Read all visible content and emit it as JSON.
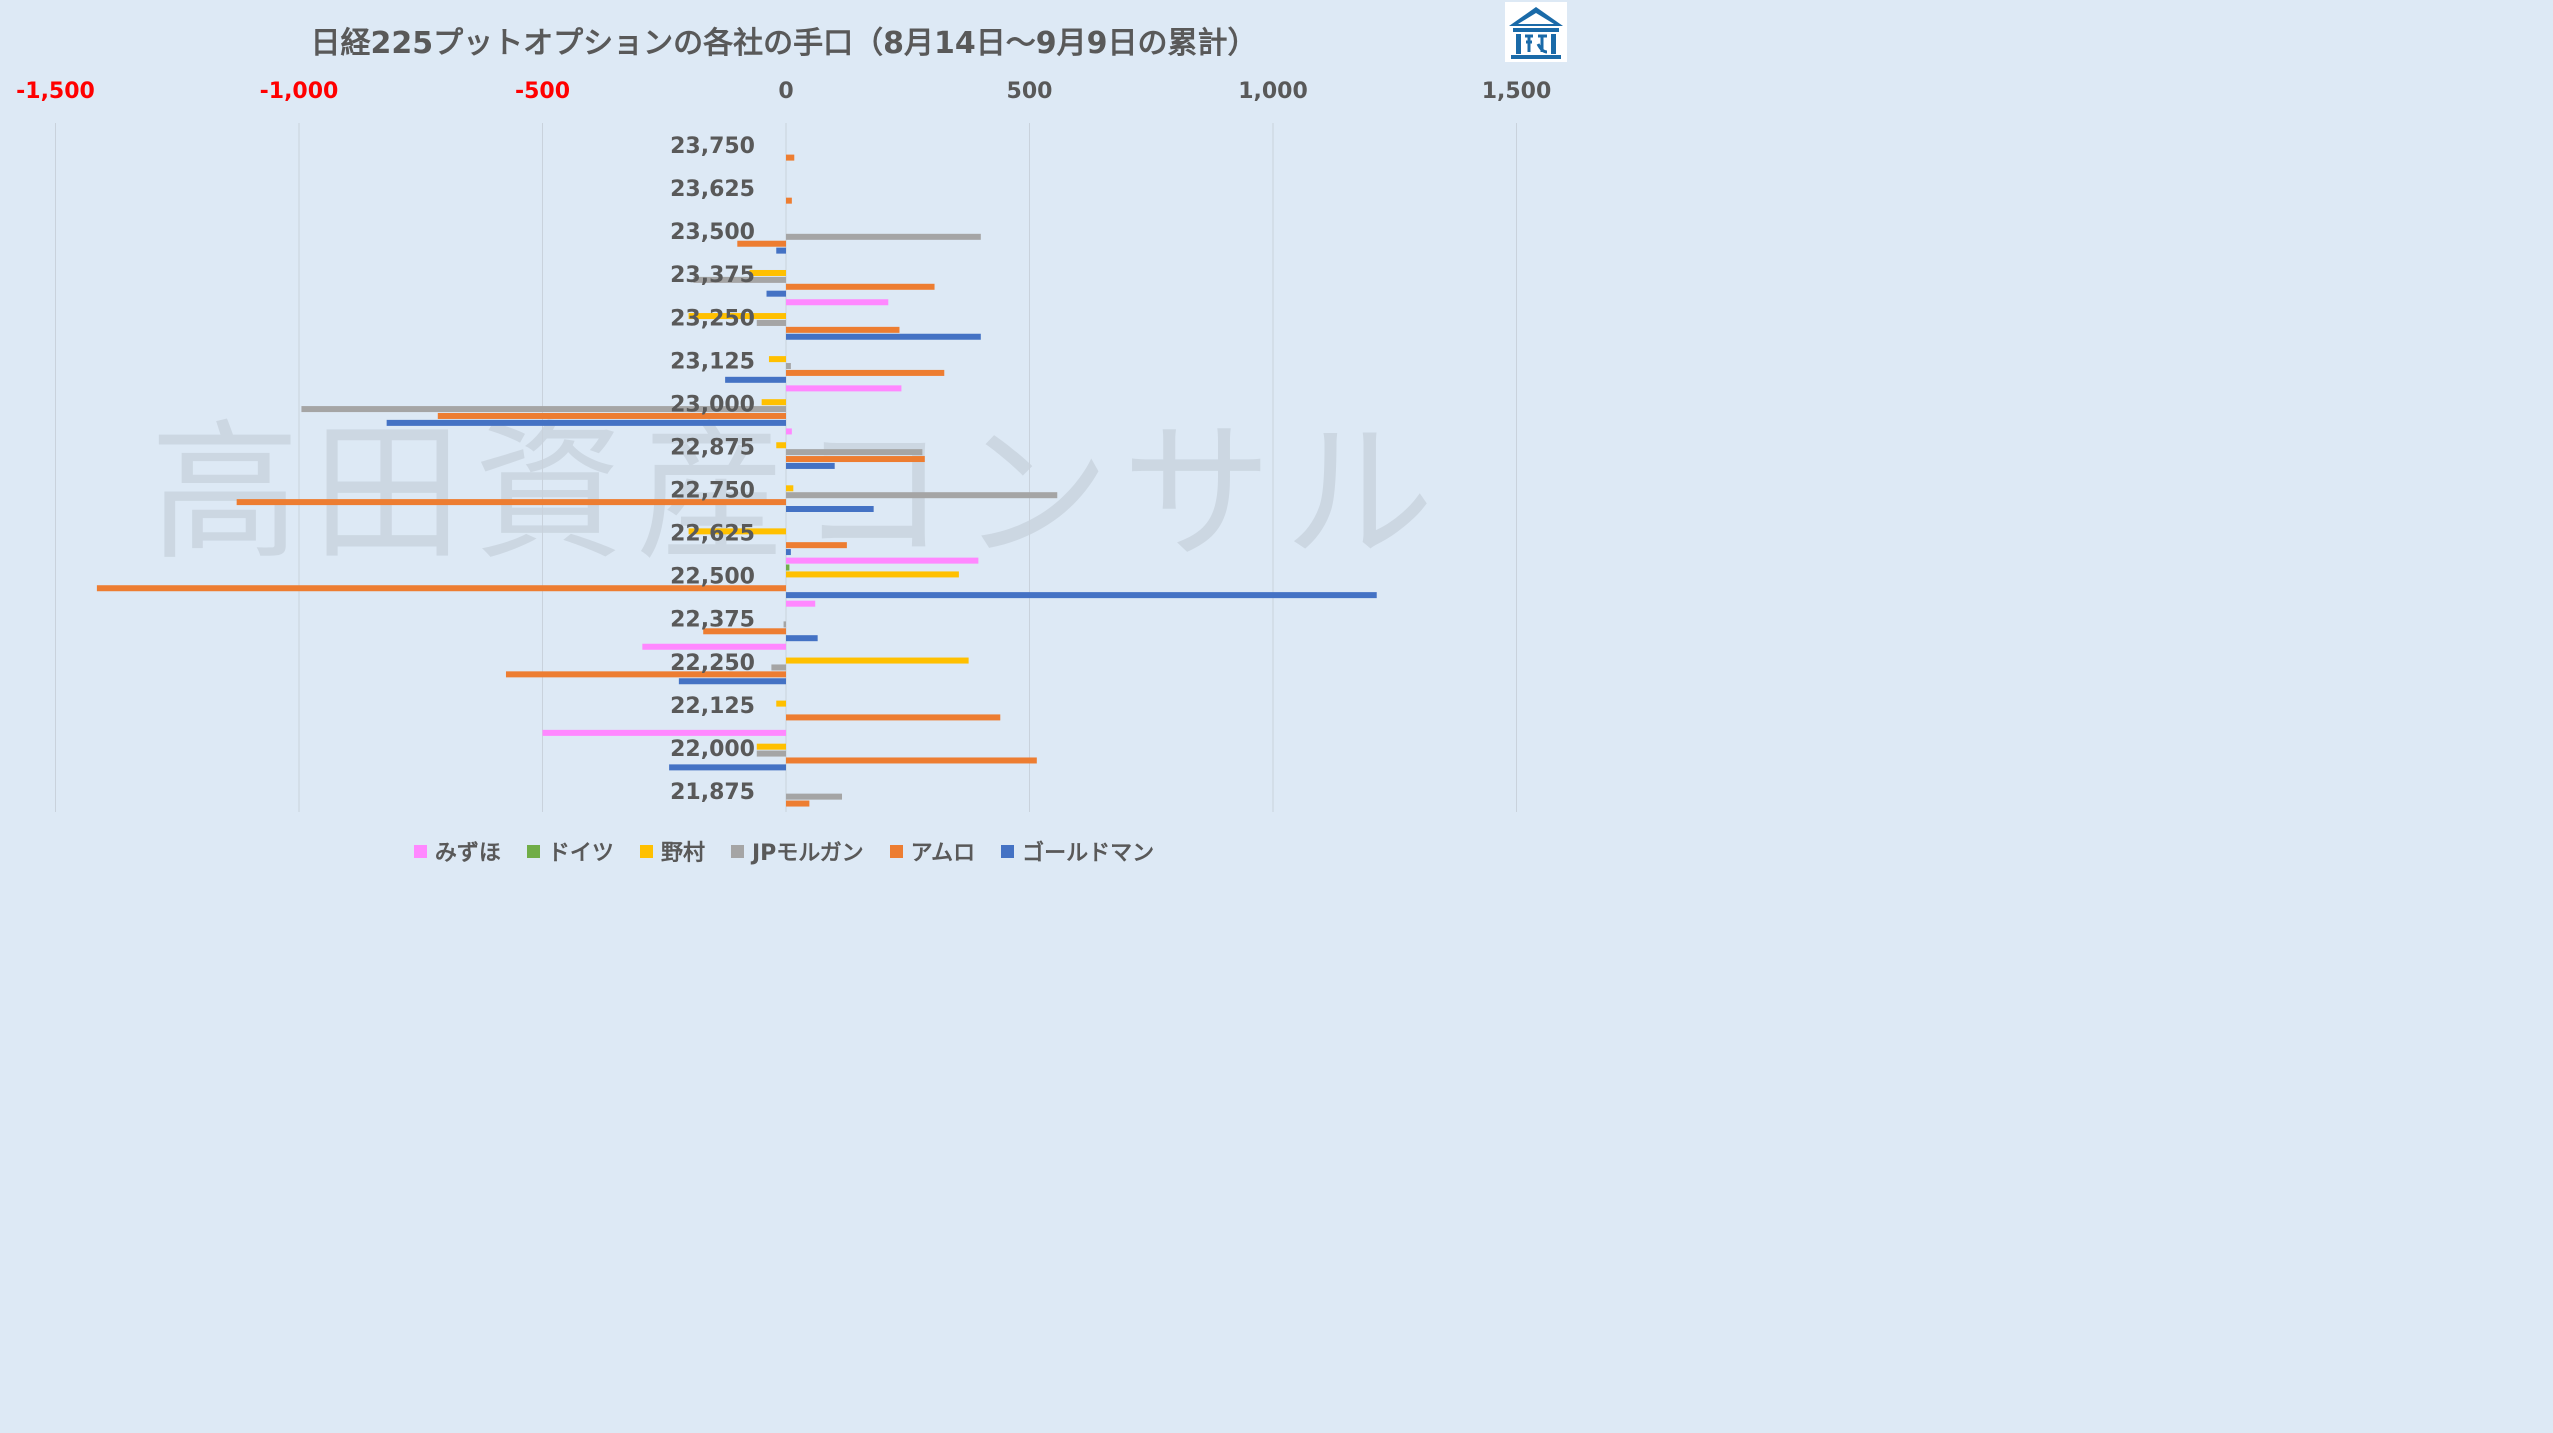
{
  "chart_data": {
    "type": "bar",
    "orientation": "horizontal",
    "title": "日経225プットオプションの各社の手口（8月14日～9月9日の累計）",
    "xlim": [
      -1500,
      1500
    ],
    "x_ticks": [
      "-1,500",
      "-1,000",
      "-500",
      "0",
      "500",
      "1,000",
      "1,500"
    ],
    "x_tick_values": [
      -1500,
      -1000,
      -500,
      0,
      500,
      1000,
      1500
    ],
    "negative_tick_color": "#ff0000",
    "categories": [
      "23,750",
      "23,625",
      "23,500",
      "23,375",
      "23,250",
      "23,125",
      "23,000",
      "22,875",
      "22,750",
      "22,625",
      "22,500",
      "22,375",
      "22,250",
      "22,125",
      "22,000",
      "21,875"
    ],
    "series": [
      {
        "name": "みずほ",
        "color": "#ff88ff",
        "values": [
          0,
          0,
          0,
          0,
          210,
          0,
          237,
          12,
          0,
          0,
          395,
          60,
          -295,
          0,
          -500,
          0
        ]
      },
      {
        "name": "ドイツ",
        "color": "#70ad47",
        "values": [
          0,
          0,
          0,
          0,
          0,
          0,
          0,
          0,
          0,
          0,
          7,
          0,
          0,
          0,
          0,
          0
        ]
      },
      {
        "name": "野村",
        "color": "#ffc000",
        "values": [
          0,
          0,
          0,
          -75,
          -200,
          -35,
          -50,
          -20,
          15,
          -200,
          355,
          0,
          375,
          -20,
          -60,
          0
        ]
      },
      {
        "name": "JPモルガン",
        "color": "#a5a5a5",
        "values": [
          0,
          0,
          400,
          -190,
          -60,
          10,
          -995,
          280,
          557,
          0,
          0,
          -5,
          -30,
          0,
          -60,
          115
        ]
      },
      {
        "name": "アムロ",
        "color": "#ed7d31",
        "values": [
          17,
          12,
          -100,
          305,
          233,
          325,
          -715,
          285,
          -1128,
          125,
          -1415,
          -170,
          -575,
          440,
          515,
          48
        ]
      },
      {
        "name": "ゴールドマン",
        "color": "#4472c4",
        "values": [
          0,
          0,
          -20,
          -40,
          400,
          -125,
          -820,
          100,
          180,
          10,
          1213,
          65,
          -220,
          0,
          -240,
          0
        ]
      }
    ]
  },
  "watermark": "高田資産コンサル",
  "logo": {
    "icon": "building-logo-icon",
    "color": "#1a6aa8"
  }
}
